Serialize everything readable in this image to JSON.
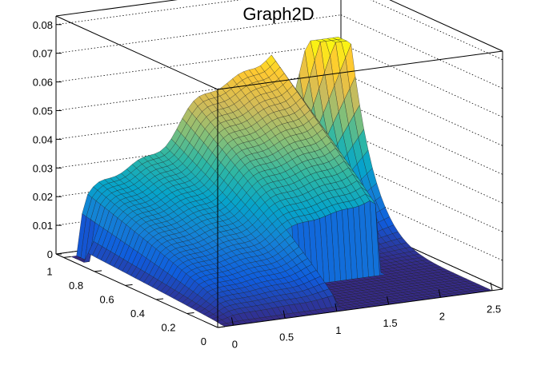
{
  "chart_data": {
    "type": "surface",
    "title": "Graph2D",
    "xlabel": "",
    "ylabel": "",
    "zlabel": "",
    "xlim": [
      -0.15,
      2.6
    ],
    "ylim": [
      0,
      1.05
    ],
    "zlim": [
      0,
      0.083
    ],
    "x_ticks": [
      0,
      0.5,
      1,
      1.5,
      2,
      2.5
    ],
    "x_tick_labels": [
      "0",
      "0.5",
      "1",
      "1.5",
      "2",
      "2.5"
    ],
    "y_ticks": [
      0,
      0.2,
      0.4,
      0.6,
      0.8,
      1
    ],
    "y_tick_labels": [
      "0",
      "0.2",
      "0.4",
      "0.6",
      "0.8",
      "1"
    ],
    "z_ticks": [
      0,
      0.01,
      0.02,
      0.03,
      0.04,
      0.05,
      0.06,
      0.07,
      0.08
    ],
    "z_tick_labels": [
      "0",
      "0.01",
      "0.02",
      "0.03",
      "0.04",
      "0.05",
      "0.06",
      "0.07",
      "0.08"
    ],
    "grid": true,
    "colormap": [
      "#352a87",
      "#0f5cdd",
      "#1481d6",
      "#06a4ca",
      "#2eb7a4",
      "#87bf77",
      "#d1bb59",
      "#fec832",
      "#f9fb0e"
    ],
    "surface_z_max": 0.064,
    "surface_peak": {
      "x": 2.2,
      "y": 1.0,
      "z": 0.064
    }
  }
}
